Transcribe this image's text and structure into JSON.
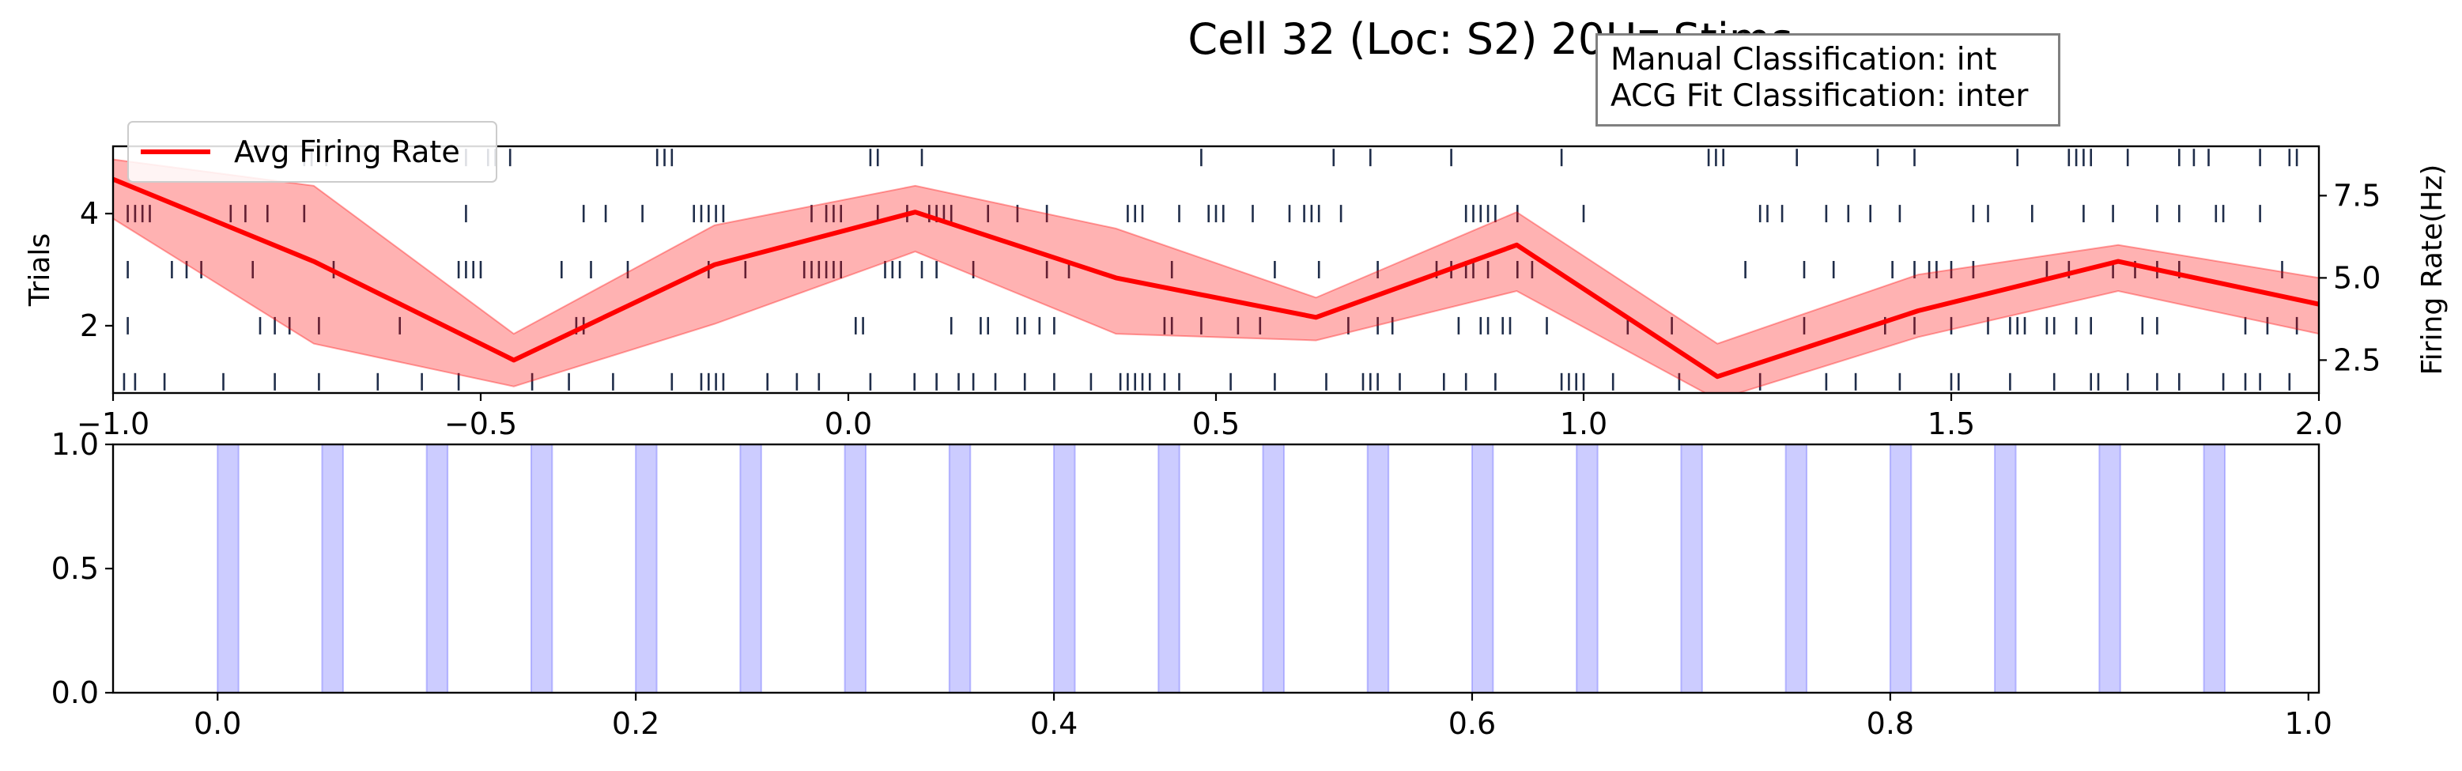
{
  "chart_data": [
    {
      "type": "raster_with_line",
      "title": "Cell 32 (Loc: S2) 20Hz Stims",
      "annotation_lines": [
        "Manual Classification: int",
        "ACG Fit Classification: inter"
      ],
      "xlim": [
        -1.0,
        2.0
      ],
      "x_ticks": [
        -1.0,
        -0.5,
        0.0,
        0.5,
        1.0,
        1.5,
        2.0
      ],
      "x_tick_labels": [
        "−1.0",
        "−0.5",
        "0.0",
        "0.5",
        "1.0",
        "1.5",
        "2.0"
      ],
      "left_axis": {
        "label": "Trials",
        "ylim": [
          0.8,
          5.2
        ],
        "ticks": [
          2,
          4
        ],
        "tick_labels": [
          "2",
          "4"
        ]
      },
      "right_axis": {
        "label": "Firing Rate(Hz)",
        "ylim": [
          1.5,
          9.0
        ],
        "ticks": [
          2.5,
          5.0,
          7.5
        ],
        "tick_labels": [
          "2.5",
          "5.0",
          "7.5"
        ]
      },
      "legend": {
        "position": "upper-left",
        "entries": [
          "Avg Firing Rate"
        ]
      },
      "raster_color": "#1f2d4a",
      "spike_trains": [
        {
          "trial": 1,
          "times": [
            -0.985,
            -0.97,
            -0.93,
            -0.85,
            -0.78,
            -0.72,
            -0.64,
            -0.58,
            -0.53,
            -0.43,
            -0.38,
            -0.32,
            -0.24,
            -0.2,
            -0.19,
            -0.18,
            -0.17,
            -0.11,
            -0.07,
            -0.04,
            0.03,
            0.09,
            0.12,
            0.15,
            0.17,
            0.2,
            0.24,
            0.28,
            0.33,
            0.37,
            0.38,
            0.39,
            0.4,
            0.41,
            0.43,
            0.45,
            0.52,
            0.58,
            0.65,
            0.7,
            0.71,
            0.72,
            0.75,
            0.81,
            0.84,
            0.88,
            0.97,
            0.98,
            0.99,
            1.0,
            1.04,
            1.13,
            1.24,
            1.33,
            1.37,
            1.43,
            1.5,
            1.51,
            1.58,
            1.64,
            1.69,
            1.7,
            1.74,
            1.78,
            1.81,
            1.87,
            1.9,
            1.92,
            1.96
          ]
        },
        {
          "trial": 2,
          "times": [
            -0.98,
            -0.8,
            -0.78,
            -0.76,
            -0.72,
            -0.61,
            -0.37,
            -0.36,
            0.01,
            0.02,
            0.14,
            0.18,
            0.19,
            0.23,
            0.24,
            0.26,
            0.28,
            0.43,
            0.44,
            0.48,
            0.53,
            0.56,
            0.68,
            0.72,
            0.74,
            0.83,
            0.86,
            0.87,
            0.89,
            0.9,
            0.95,
            1.06,
            1.12,
            1.3,
            1.41,
            1.45,
            1.5,
            1.55,
            1.58,
            1.59,
            1.6,
            1.63,
            1.64,
            1.67,
            1.69,
            1.76,
            1.78,
            1.9,
            1.93,
            1.97
          ]
        },
        {
          "trial": 3,
          "times": [
            -0.98,
            -0.92,
            -0.9,
            -0.88,
            -0.81,
            -0.7,
            -0.53,
            -0.52,
            -0.51,
            -0.5,
            -0.39,
            -0.35,
            -0.3,
            -0.19,
            -0.14,
            -0.06,
            -0.05,
            -0.04,
            -0.03,
            -0.02,
            -0.01,
            0.05,
            0.06,
            0.07,
            0.1,
            0.12,
            0.17,
            0.27,
            0.3,
            0.44,
            0.58,
            0.64,
            0.72,
            0.8,
            0.82,
            0.84,
            0.85,
            0.87,
            0.91,
            0.93,
            1.22,
            1.3,
            1.34,
            1.42,
            1.45,
            1.47,
            1.48,
            1.5,
            1.53,
            1.63,
            1.66,
            1.72,
            1.75,
            1.78,
            1.81,
            1.95
          ]
        },
        {
          "trial": 4,
          "times": [
            -0.98,
            -0.97,
            -0.96,
            -0.95,
            -0.84,
            -0.82,
            -0.79,
            -0.74,
            -0.52,
            -0.36,
            -0.33,
            -0.28,
            -0.21,
            -0.2,
            -0.19,
            -0.18,
            -0.17,
            -0.05,
            -0.03,
            -0.02,
            -0.01,
            0.04,
            0.08,
            0.11,
            0.12,
            0.13,
            0.14,
            0.19,
            0.23,
            0.27,
            0.38,
            0.39,
            0.4,
            0.45,
            0.49,
            0.5,
            0.51,
            0.55,
            0.6,
            0.62,
            0.63,
            0.64,
            0.67,
            0.84,
            0.85,
            0.86,
            0.87,
            0.88,
            0.91,
            1.0,
            1.24,
            1.25,
            1.27,
            1.33,
            1.36,
            1.39,
            1.43,
            1.53,
            1.55,
            1.61,
            1.68,
            1.72,
            1.78,
            1.81,
            1.86,
            1.87,
            1.92
          ]
        },
        {
          "trial": 5,
          "times": [
            -0.74,
            -0.73,
            -0.71,
            -0.52,
            -0.49,
            -0.48,
            -0.46,
            -0.26,
            -0.25,
            -0.24,
            0.03,
            0.04,
            0.1,
            0.48,
            0.66,
            0.71,
            0.82,
            0.97,
            1.17,
            1.18,
            1.19,
            1.29,
            1.4,
            1.45,
            1.59,
            1.66,
            1.67,
            1.68,
            1.69,
            1.74,
            1.81,
            1.83,
            1.85,
            1.92,
            1.96,
            1.97
          ]
        }
      ],
      "series": [
        {
          "name": "Avg Firing Rate",
          "color": "#ff0000",
          "x": [
            -1.0,
            -0.727,
            -0.455,
            -0.182,
            0.091,
            0.364,
            0.636,
            0.909,
            1.182,
            1.455,
            1.727,
            2.0
          ],
          "y": [
            8.0,
            5.5,
            2.5,
            5.4,
            7.0,
            5.0,
            3.8,
            6.0,
            2.0,
            4.0,
            5.5,
            4.2
          ],
          "lower": [
            6.8,
            3.0,
            1.7,
            3.6,
            5.8,
            3.3,
            3.1,
            4.6,
            1.3,
            3.2,
            4.6,
            3.3
          ],
          "upper": [
            8.6,
            7.8,
            3.3,
            6.6,
            7.8,
            6.5,
            4.4,
            7.0,
            3.0,
            5.1,
            6.0,
            5.0
          ]
        }
      ]
    },
    {
      "type": "event_bars",
      "xlim": [
        -0.05,
        1.005
      ],
      "ylim": [
        0.0,
        1.0
      ],
      "x_ticks": [
        0.0,
        0.2,
        0.4,
        0.6,
        0.8,
        1.0
      ],
      "x_tick_labels": [
        "0.0",
        "0.2",
        "0.4",
        "0.6",
        "0.8",
        "1.0"
      ],
      "y_ticks": [
        0.0,
        0.5,
        1.0
      ],
      "y_tick_labels": [
        "0.0",
        "0.5",
        "1.0"
      ],
      "stim_color": "#8080ff",
      "stim_duration": 0.01,
      "stim_onsets": [
        0.0,
        0.05,
        0.1,
        0.15,
        0.2,
        0.25,
        0.3,
        0.35,
        0.4,
        0.45,
        0.5,
        0.55,
        0.6,
        0.65,
        0.7,
        0.75,
        0.8,
        0.85,
        0.9,
        0.95
      ]
    }
  ]
}
